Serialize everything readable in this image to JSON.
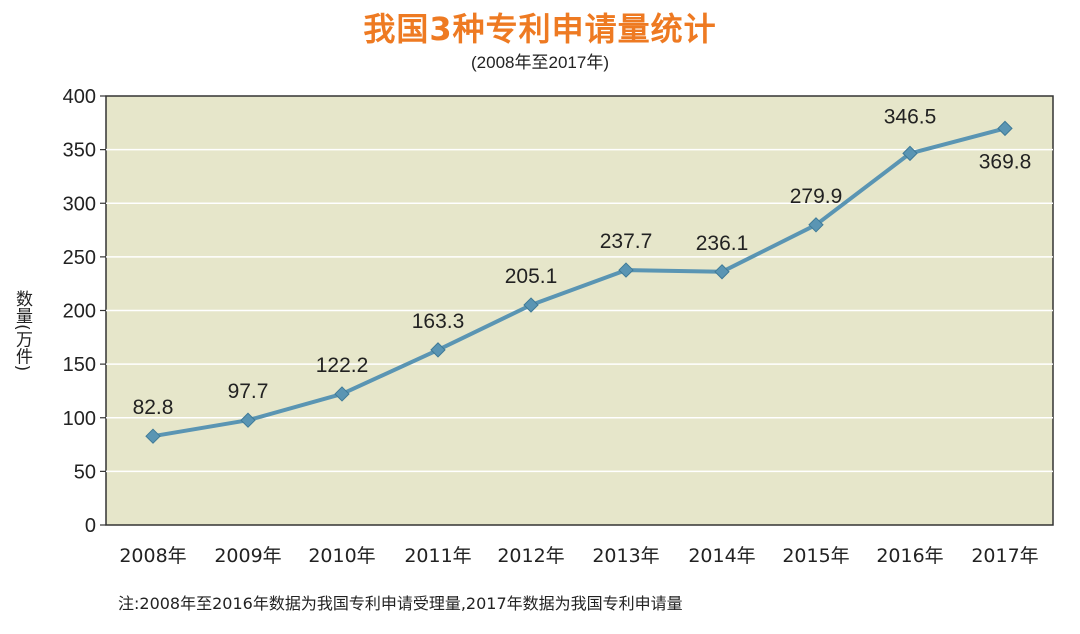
{
  "title": "我国3种专利申请量统计",
  "subtitle": "(2008年至2017年)",
  "note": "注:2008年至2016年数据为我国专利申请受理量,2017年数据为我国专利申请量",
  "colors": {
    "title": "#ee7a22",
    "plot_bg": "#e6e6ca",
    "line": "#5a95b3",
    "grid": "#ffffff"
  },
  "chart_data": {
    "type": "line",
    "title": "我国3种专利申请量统计",
    "subtitle": "(2008年至2017年)",
    "xlabel": "",
    "ylabel": "数量(万件)",
    "ylim": [
      0,
      400
    ],
    "yticks": [
      0,
      50,
      100,
      150,
      200,
      250,
      300,
      350,
      400
    ],
    "categories": [
      "2008年",
      "2009年",
      "2010年",
      "2011年",
      "2012年",
      "2013年",
      "2014年",
      "2015年",
      "2016年",
      "2017年"
    ],
    "values": [
      82.8,
      97.7,
      122.2,
      163.3,
      205.1,
      237.7,
      236.1,
      279.9,
      346.5,
      369.8
    ],
    "data_labels": [
      "82.8",
      "97.7",
      "122.2",
      "163.3",
      "205.1",
      "237.7",
      "236.1",
      "279.9",
      "346.5",
      "369.8"
    ],
    "grid": true,
    "marker": "diamond"
  }
}
